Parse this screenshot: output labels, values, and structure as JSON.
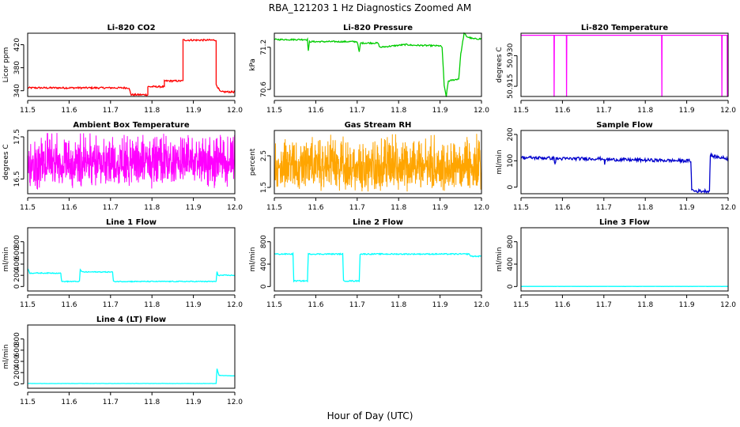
{
  "title": "RBA_121203  1 Hz Diagnostics Zoomed AM",
  "x_axis_label": "Hour of Day (UTC)",
  "chart_data": [
    {
      "type": "line",
      "title": "Li-820 CO2",
      "ylabel": "Licor ppm",
      "color": "#ff0000",
      "xlim": [
        11.5,
        12.0
      ],
      "ylim": [
        330,
        440
      ],
      "x_ticks": [
        "11.5",
        "11.6",
        "11.7",
        "11.8",
        "11.9",
        "12.0"
      ],
      "y_ticks": [
        {
          "v": 340,
          "t": "340"
        },
        {
          "v": 380,
          "t": "380"
        },
        {
          "v": 420,
          "t": "420"
        }
      ],
      "segments": [
        [
          11.5,
          345
        ],
        [
          11.745,
          345
        ],
        [
          11.745,
          343
        ],
        [
          11.75,
          333
        ],
        [
          11.79,
          333
        ],
        [
          11.79,
          347
        ],
        [
          11.83,
          347
        ],
        [
          11.83,
          357
        ],
        [
          11.875,
          357
        ],
        [
          11.875,
          428
        ],
        [
          11.955,
          428
        ],
        [
          11.955,
          351
        ],
        [
          11.965,
          338
        ],
        [
          12.0,
          338
        ]
      ],
      "noise": 1.5
    },
    {
      "type": "line",
      "title": "Li-820 Pressure",
      "ylabel": "kPa",
      "color": "#00cc00",
      "xlim": [
        11.5,
        12.0
      ],
      "ylim": [
        70.5,
        71.4
      ],
      "x_ticks": [
        "11.5",
        "11.6",
        "11.7",
        "11.8",
        "11.9",
        "12.0"
      ],
      "y_ticks": [
        {
          "v": 70.6,
          "t": "70.6"
        },
        {
          "v": 71.2,
          "t": "71.2"
        }
      ],
      "segments": [
        [
          11.5,
          71.31
        ],
        [
          11.58,
          71.31
        ],
        [
          11.582,
          71.15
        ],
        [
          11.585,
          71.28
        ],
        [
          11.7,
          71.28
        ],
        [
          11.705,
          71.13
        ],
        [
          11.708,
          71.26
        ],
        [
          11.75,
          71.26
        ],
        [
          11.755,
          71.2
        ],
        [
          11.82,
          71.24
        ],
        [
          11.83,
          71.23
        ],
        [
          11.9,
          71.22
        ],
        [
          11.905,
          71.2
        ],
        [
          11.91,
          70.65
        ],
        [
          11.915,
          70.5
        ],
        [
          11.92,
          70.72
        ],
        [
          11.945,
          70.75
        ],
        [
          11.95,
          71.1
        ],
        [
          11.958,
          71.4
        ],
        [
          11.965,
          71.35
        ],
        [
          11.98,
          71.32
        ],
        [
          12.0,
          71.32
        ]
      ],
      "noise": 0.01
    },
    {
      "type": "line",
      "title": "Li-820 Temperature",
      "ylabel": "degrees C",
      "color": "#ff00ff",
      "xlim": [
        11.5,
        12.0
      ],
      "ylim": [
        50.91,
        50.941
      ],
      "x_ticks": [
        "11.5",
        "11.6",
        "11.7",
        "11.8",
        "11.9",
        "12.0"
      ],
      "y_ticks": [
        {
          "v": 50.915,
          "t": "50.915"
        },
        {
          "v": 50.93,
          "t": "50.930"
        }
      ],
      "baseline": 50.94,
      "dips": [
        11.58,
        11.61,
        11.84,
        11.985,
        11.998
      ],
      "dip_to": 50.91
    },
    {
      "type": "line",
      "title": "Ambient Box Temperature",
      "ylabel": "degrees C",
      "color": "#ff00ff",
      "xlim": [
        11.5,
        12.0
      ],
      "ylim": [
        16.15,
        17.65
      ],
      "x_ticks": [
        "11.5",
        "11.6",
        "11.7",
        "11.8",
        "11.9",
        "12.0"
      ],
      "y_ticks": [
        {
          "v": 16.5,
          "t": "16.5"
        },
        {
          "v": 17.5,
          "t": "17.5"
        }
      ],
      "band": [
        16.4,
        17.5
      ],
      "center": 16.75,
      "spikes": [
        16.25,
        17.6
      ]
    },
    {
      "type": "line",
      "title": "Gas Stream RH",
      "ylabel": "percent",
      "color": "#ffa500",
      "xlim": [
        11.5,
        12.0
      ],
      "ylim": [
        1.3,
        3.3
      ],
      "x_ticks": [
        "11.5",
        "11.6",
        "11.7",
        "11.8",
        "11.9",
        "12.0"
      ],
      "y_ticks": [
        {
          "v": 1.5,
          "t": "1.5"
        },
        {
          "v": 2.5,
          "t": "2.5"
        }
      ],
      "band": [
        1.5,
        3.0
      ],
      "center": 2.0,
      "spikes": [
        1.35,
        3.2
      ]
    },
    {
      "type": "line",
      "title": "Sample Flow",
      "ylabel": "ml/min",
      "color": "#0000cc",
      "xlim": [
        11.5,
        12.0
      ],
      "ylim": [
        -25,
        215
      ],
      "x_ticks": [
        "11.5",
        "11.6",
        "11.7",
        "11.8",
        "11.9",
        "12.0"
      ],
      "y_ticks": [
        {
          "v": 0,
          "t": "0"
        },
        {
          "v": 100,
          "t": "100"
        },
        {
          "v": 200,
          "t": "200"
        }
      ],
      "segments": [
        [
          11.5,
          112
        ],
        [
          11.58,
          110
        ],
        [
          11.582,
          88
        ],
        [
          11.585,
          108
        ],
        [
          11.7,
          108
        ],
        [
          11.702,
          90
        ],
        [
          11.705,
          105
        ],
        [
          11.9,
          100
        ],
        [
          11.91,
          100
        ],
        [
          11.912,
          -10
        ],
        [
          11.92,
          -15
        ],
        [
          11.955,
          -15
        ],
        [
          11.957,
          125
        ],
        [
          11.96,
          118
        ],
        [
          12.0,
          108
        ]
      ],
      "noise": 6
    },
    {
      "type": "line",
      "title": "Line 1 Flow",
      "ylabel": "ml/min",
      "color": "#00ffff",
      "xlim": [
        11.5,
        12.0
      ],
      "ylim": [
        -80,
        1050
      ],
      "x_ticks": [
        "11.5",
        "11.6",
        "11.7",
        "11.8",
        "11.9",
        "12.0"
      ],
      "y_ticks": [
        {
          "v": 0,
          "t": "0"
        },
        {
          "v": 200,
          "t": "200"
        },
        {
          "v": 400,
          "t": "400"
        },
        {
          "v": 600,
          "t": "600"
        },
        {
          "v": 800,
          "t": "800"
        }
      ],
      "segments": [
        [
          11.5,
          320
        ],
        [
          11.505,
          240
        ],
        [
          11.58,
          240
        ],
        [
          11.582,
          90
        ],
        [
          11.625,
          90
        ],
        [
          11.627,
          300
        ],
        [
          11.632,
          260
        ],
        [
          11.705,
          260
        ],
        [
          11.707,
          90
        ],
        [
          11.75,
          90
        ],
        [
          11.752,
          90
        ],
        [
          11.955,
          90
        ],
        [
          11.957,
          260
        ],
        [
          11.96,
          200
        ],
        [
          12.0,
          200
        ]
      ],
      "noise": 8
    },
    {
      "type": "line",
      "title": "Line 2 Flow",
      "ylabel": "ml/min",
      "color": "#00ffff",
      "xlim": [
        11.5,
        12.0
      ],
      "ylim": [
        -80,
        1050
      ],
      "x_ticks": [
        "11.5",
        "11.6",
        "11.7",
        "11.8",
        "11.9",
        "12.0"
      ],
      "y_ticks": [
        {
          "v": 0,
          "t": "0"
        },
        {
          "v": 400,
          "t": "400"
        },
        {
          "v": 800,
          "t": "800"
        }
      ],
      "segments": [
        [
          11.5,
          580
        ],
        [
          11.545,
          580
        ],
        [
          11.547,
          100
        ],
        [
          11.58,
          100
        ],
        [
          11.582,
          580
        ],
        [
          11.665,
          580
        ],
        [
          11.667,
          100
        ],
        [
          11.705,
          100
        ],
        [
          11.707,
          580
        ],
        [
          11.97,
          580
        ],
        [
          11.975,
          540
        ],
        [
          12.0,
          540
        ]
      ],
      "noise": 10
    },
    {
      "type": "line",
      "title": "Line 3 Flow",
      "ylabel": "ml/min",
      "color": "#00ffff",
      "xlim": [
        11.5,
        12.0
      ],
      "ylim": [
        -80,
        1050
      ],
      "x_ticks": [
        "11.5",
        "11.6",
        "11.7",
        "11.8",
        "11.9",
        "12.0"
      ],
      "y_ticks": [
        {
          "v": 0,
          "t": "0"
        },
        {
          "v": 400,
          "t": "400"
        },
        {
          "v": 800,
          "t": "800"
        }
      ],
      "segments": [
        [
          11.5,
          2
        ],
        [
          12.0,
          2
        ]
      ],
      "noise": 1
    },
    {
      "type": "line",
      "title": "Line 4 (LT) Flow",
      "ylabel": "ml/min",
      "color": "#00ffff",
      "xlim": [
        11.5,
        12.0
      ],
      "ylim": [
        -80,
        1050
      ],
      "x_ticks": [
        "11.5",
        "11.6",
        "11.7",
        "11.8",
        "11.9",
        "12.0"
      ],
      "y_ticks": [
        {
          "v": 0,
          "t": "0"
        },
        {
          "v": 200,
          "t": "200"
        },
        {
          "v": 400,
          "t": "400"
        },
        {
          "v": 600,
          "t": "600"
        },
        {
          "v": 800,
          "t": "800"
        }
      ],
      "segments": [
        [
          11.5,
          5
        ],
        [
          11.955,
          5
        ],
        [
          11.957,
          270
        ],
        [
          11.962,
          150
        ],
        [
          12.0,
          140
        ]
      ],
      "noise": 2
    }
  ]
}
